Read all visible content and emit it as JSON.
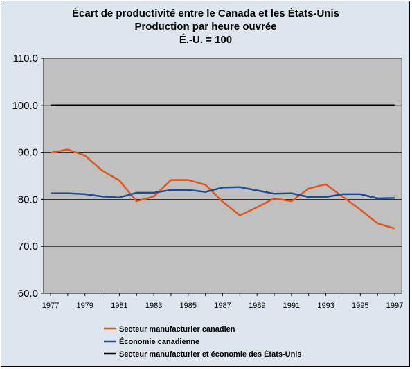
{
  "chart_data": {
    "type": "line",
    "title": [
      "Écart de productivité entre le Canada et les États-Unis",
      "Production par heure ouvrée",
      "É.-U. = 100"
    ],
    "xlabel": "",
    "ylabel": "",
    "ylim": [
      60,
      110
    ],
    "y_ticks": [
      "60.0",
      "70.0",
      "80.0",
      "90.0",
      "100.0",
      "110.0"
    ],
    "y_tick_values": [
      60,
      70,
      80,
      90,
      100,
      110
    ],
    "x": [
      1977,
      1978,
      1979,
      1980,
      1981,
      1982,
      1983,
      1984,
      1985,
      1986,
      1987,
      1988,
      1989,
      1990,
      1991,
      1992,
      1993,
      1994,
      1995,
      1996,
      1997
    ],
    "x_ticks": [
      "1977",
      "1979",
      "1981",
      "1983",
      "1985",
      "1987",
      "1989",
      "1991",
      "1993",
      "1995",
      "1997"
    ],
    "grid": true,
    "legend_position": "bottom",
    "background": "#c0c0c0",
    "series": [
      {
        "name": "Secteur manufacturier canadien",
        "color": "#e0561b",
        "values": [
          89.9,
          90.6,
          89.3,
          86.1,
          84.0,
          79.6,
          80.6,
          84.1,
          84.1,
          83.1,
          79.5,
          76.6,
          78.3,
          80.2,
          79.6,
          82.3,
          83.2,
          80.5,
          77.8,
          74.9,
          73.8
        ]
      },
      {
        "name": "Économie canadienne",
        "color": "#1f4e96",
        "values": [
          81.3,
          81.3,
          81.1,
          80.6,
          80.4,
          81.4,
          81.4,
          82.0,
          82.0,
          81.6,
          82.5,
          82.6,
          81.9,
          81.2,
          81.3,
          80.5,
          80.5,
          81.1,
          81.1,
          80.2,
          80.3
        ]
      },
      {
        "name": "Secteur manufacturier et économie des États-Unis",
        "color": "#000000",
        "values": [
          100,
          100,
          100,
          100,
          100,
          100,
          100,
          100,
          100,
          100,
          100,
          100,
          100,
          100,
          100,
          100,
          100,
          100,
          100,
          100,
          100
        ]
      }
    ]
  }
}
